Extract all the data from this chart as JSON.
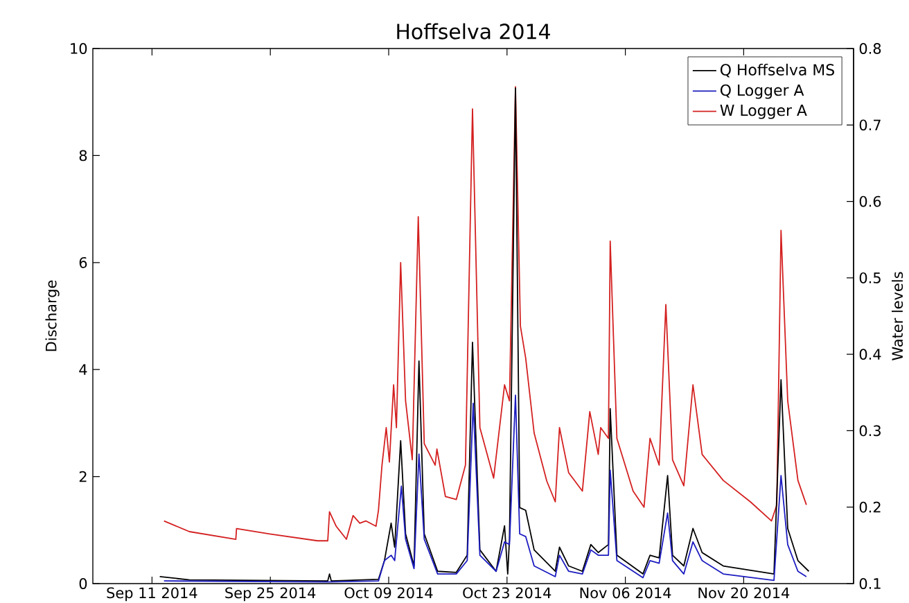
{
  "chart_data": {
    "type": "line",
    "title": "Hoffselva 2014",
    "ylabel": "Discharge",
    "y2label": "Water levels",
    "xlim": [
      "2014-09-04",
      "2014-12-03"
    ],
    "xticks": [
      {
        "value": "2014-09-11",
        "label": "Sep 11 2014"
      },
      {
        "value": "2014-09-25",
        "label": "Sep 25 2014"
      },
      {
        "value": "2014-10-09",
        "label": "Oct 09 2014"
      },
      {
        "value": "2014-10-23",
        "label": "Oct 23 2014"
      },
      {
        "value": "2014-11-06",
        "label": "Nov 06 2014"
      },
      {
        "value": "2014-11-20",
        "label": "Nov 20 2014"
      }
    ],
    "ylim": [
      0,
      10
    ],
    "yticks": [
      0,
      2,
      4,
      6,
      8,
      10
    ],
    "y2lim": [
      0.1,
      0.8
    ],
    "y2ticks": [
      0.1,
      0.2,
      0.3,
      0.4,
      0.5,
      0.6,
      0.7,
      0.8
    ],
    "legend": "top right",
    "series": [
      {
        "name": "Q Hoffselva MS",
        "color": "#000000",
        "x": [
          "2014-09-11T22:00",
          "2014-09-15T10:00",
          "2014-10-01T19:00",
          "2014-10-02T00:00",
          "2014-10-02T05:00",
          "2014-10-07T19:00",
          "2014-10-08T12:00",
          "2014-10-09T07:00",
          "2014-10-09T17:00",
          "2014-10-10T10:00",
          "2014-10-11T00:00",
          "2014-10-12T00:00",
          "2014-10-12T14:00",
          "2014-10-13T05:00",
          "2014-10-14T19:00",
          "2014-10-17T00:00",
          "2014-10-18T07:00",
          "2014-10-18T22:00",
          "2014-10-19T19:00",
          "2014-10-21T17:00",
          "2014-10-22T17:00",
          "2014-10-23T02:00",
          "2014-10-23T07:00",
          "2014-10-24T00:00",
          "2014-10-24T12:00",
          "2014-10-25T05:00",
          "2014-10-26T05:00",
          "2014-10-28T17:00",
          "2014-10-29T05:00",
          "2014-10-30T07:00",
          "2014-10-31T22:00",
          "2014-11-01T22:00",
          "2014-11-02T19:00",
          "2014-11-04T00:00",
          "2014-11-04T05:00",
          "2014-11-05T00:00",
          "2014-11-08T02:00",
          "2014-11-08T22:00",
          "2014-11-10T00:00",
          "2014-11-11T00:00",
          "2014-11-11T14:00",
          "2014-11-12T22:00",
          "2014-11-14T00:00",
          "2014-11-15T02:00",
          "2014-11-17T14:00",
          "2014-11-23T14:00",
          "2014-11-24T10:00",
          "2014-11-25T05:00",
          "2014-11-26T10:00",
          "2014-11-27T17:00"
        ],
        "values": [
          0.13,
          0.07,
          0.05,
          0.18,
          0.05,
          0.08,
          0.43,
          1.13,
          0.68,
          2.67,
          0.93,
          0.33,
          4.16,
          0.93,
          0.23,
          0.21,
          0.53,
          4.51,
          0.63,
          0.23,
          1.08,
          0.18,
          0.83,
          9.26,
          1.42,
          1.37,
          0.63,
          0.23,
          0.68,
          0.33,
          0.23,
          0.73,
          0.58,
          0.73,
          3.27,
          0.53,
          0.18,
          0.53,
          0.48,
          2.02,
          0.53,
          0.33,
          1.03,
          0.58,
          0.33,
          0.18,
          3.81,
          1.03,
          0.43,
          0.23
        ]
      },
      {
        "name": "Q Logger A",
        "color": "#1c1cc0",
        "x": [
          "2014-09-12T10:00",
          "2014-10-01T19:00",
          "2014-10-07T19:00",
          "2014-10-08T12:00",
          "2014-10-09T07:00",
          "2014-10-09T17:00",
          "2014-10-10T12:00",
          "2014-10-11T00:00",
          "2014-10-12T00:00",
          "2014-10-12T14:00",
          "2014-10-13T05:00",
          "2014-10-14T19:00",
          "2014-10-17T00:00",
          "2014-10-18T07:00",
          "2014-10-19T00:00",
          "2014-10-19T19:00",
          "2014-10-21T17:00",
          "2014-10-22T17:00",
          "2014-10-23T07:00",
          "2014-10-24T00:00",
          "2014-10-24T12:00",
          "2014-10-25T05:00",
          "2014-10-26T05:00",
          "2014-10-28T17:00",
          "2014-10-29T05:00",
          "2014-10-30T07:00",
          "2014-10-31T22:00",
          "2014-11-01T22:00",
          "2014-11-02T19:00",
          "2014-11-04T00:00",
          "2014-11-04T05:00",
          "2014-11-05T00:00",
          "2014-11-08T02:00",
          "2014-11-08T22:00",
          "2014-11-10T00:00",
          "2014-11-11T00:00",
          "2014-11-11T14:00",
          "2014-11-12T22:00",
          "2014-11-14T00:00",
          "2014-11-15T02:00",
          "2014-11-17T14:00",
          "2014-11-23T14:00",
          "2014-11-24T10:00",
          "2014-11-25T05:00",
          "2014-11-26T10:00",
          "2014-11-27T10:00"
        ],
        "values": [
          0.05,
          0.03,
          0.05,
          0.43,
          0.53,
          0.43,
          1.82,
          0.83,
          0.28,
          2.42,
          0.83,
          0.18,
          0.18,
          0.43,
          3.37,
          0.53,
          0.23,
          0.78,
          0.73,
          3.52,
          0.93,
          0.88,
          0.33,
          0.13,
          0.53,
          0.23,
          0.18,
          0.63,
          0.53,
          0.53,
          2.12,
          0.43,
          0.11,
          0.43,
          0.38,
          1.32,
          0.43,
          0.18,
          0.78,
          0.43,
          0.18,
          0.06,
          2.02,
          0.73,
          0.23,
          0.13
        ]
      },
      {
        "name": "W Logger A",
        "color": "#d42020",
        "axis": "y2",
        "x": [
          "2014-09-12T10:00",
          "2014-09-15T10:00",
          "2014-09-20T22:00",
          "2014-09-21T00:00",
          "2014-09-24T22:00",
          "2014-09-30T14:00",
          "2014-10-01T19:00",
          "2014-10-02T00:00",
          "2014-10-02T19:00",
          "2014-10-04T00:00",
          "2014-10-04T19:00",
          "2014-10-05T14:00",
          "2014-10-06T07:00",
          "2014-10-07T12:00",
          "2014-10-07T19:00",
          "2014-10-08T05:00",
          "2014-10-08T17:00",
          "2014-10-09T02:00",
          "2014-10-09T14:00",
          "2014-10-09T22:00",
          "2014-10-10T10:00",
          "2014-10-11T00:00",
          "2014-10-11T19:00",
          "2014-10-12T12:00",
          "2014-10-13T05:00",
          "2014-10-14T12:00",
          "2014-10-14T17:00",
          "2014-10-15T17:00",
          "2014-10-17T00:00",
          "2014-10-18T02:00",
          "2014-10-18T22:00",
          "2014-10-19T19:00",
          "2014-10-21T10:00",
          "2014-10-22T17:00",
          "2014-10-23T07:00",
          "2014-10-24T00:00",
          "2014-10-24T14:00",
          "2014-10-25T05:00",
          "2014-10-26T05:00",
          "2014-10-27T17:00",
          "2014-10-28T17:00",
          "2014-10-29T05:00",
          "2014-10-30T07:00",
          "2014-10-31T22:00",
          "2014-11-01T19:00",
          "2014-11-02T19:00",
          "2014-11-03T02:00",
          "2014-11-04T00:00",
          "2014-11-04T05:00",
          "2014-11-05T00:00",
          "2014-11-06T22:00",
          "2014-11-08T05:00",
          "2014-11-08T22:00",
          "2014-11-10T00:00",
          "2014-11-10T19:00",
          "2014-11-11T14:00",
          "2014-11-12T22:00",
          "2014-11-14T00:00",
          "2014-11-15T02:00",
          "2014-11-17T14:00",
          "2014-11-20T19:00",
          "2014-11-23T07:00",
          "2014-11-23T22:00",
          "2014-11-24T10:00",
          "2014-11-25T05:00",
          "2014-11-26T10:00",
          "2014-11-27T10:00"
        ],
        "values": [
          0.182,
          0.168,
          0.158,
          0.172,
          0.165,
          0.156,
          0.156,
          0.194,
          0.175,
          0.158,
          0.189,
          0.179,
          0.182,
          0.175,
          0.196,
          0.255,
          0.304,
          0.259,
          0.36,
          0.304,
          0.52,
          0.339,
          0.262,
          0.58,
          0.283,
          0.255,
          0.276,
          0.214,
          0.21,
          0.255,
          0.721,
          0.304,
          0.238,
          0.36,
          0.339,
          0.75,
          0.437,
          0.395,
          0.297,
          0.234,
          0.207,
          0.304,
          0.245,
          0.221,
          0.325,
          0.269,
          0.304,
          0.29,
          0.548,
          0.29,
          0.221,
          0.2,
          0.29,
          0.255,
          0.465,
          0.262,
          0.228,
          0.36,
          0.269,
          0.235,
          0.207,
          0.182,
          0.203,
          0.562,
          0.339,
          0.235,
          0.203
        ]
      }
    ]
  }
}
